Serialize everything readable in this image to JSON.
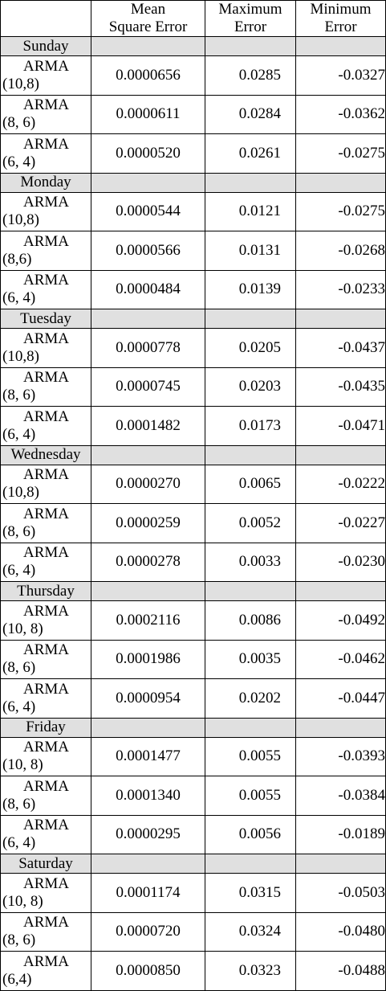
{
  "header": [
    [],
    [
      "Mean",
      "Square Error"
    ],
    [
      "Maximum",
      "Error"
    ],
    [
      "Minimum",
      "Error"
    ]
  ],
  "groups": [
    {
      "day": "Sunday",
      "rows": [
        {
          "model": [
            "ARMA",
            "(10,8)"
          ],
          "mse": "0.0000656",
          "max": "0.0285",
          "min": "-0.0327"
        },
        {
          "model": [
            "ARMA",
            "(8, 6)"
          ],
          "mse": "0.0000611",
          "max": "0.0284",
          "min": "-0.0362"
        },
        {
          "model": [
            "ARMA",
            "(6, 4)"
          ],
          "mse": "0.0000520",
          "max": "0.0261",
          "min": "-0.0275"
        }
      ]
    },
    {
      "day": "Monday",
      "rows": [
        {
          "model": [
            "ARMA",
            "(10,8)"
          ],
          "mse": "0.0000544",
          "max": "0.0121",
          "min": "-0.0275"
        },
        {
          "model": [
            "ARMA",
            "(8,6)"
          ],
          "mse": "0.0000566",
          "max": "0.0131",
          "min": "-0.0268"
        },
        {
          "model": [
            "ARMA",
            "(6, 4)"
          ],
          "mse": "0.0000484",
          "max": "0.0139",
          "min": "-0.0233"
        }
      ]
    },
    {
      "day": "Tuesday",
      "rows": [
        {
          "model": [
            "ARMA",
            "(10,8)"
          ],
          "mse": "0.0000778",
          "max": "0.0205",
          "min": "-0.0437"
        },
        {
          "model": [
            "ARMA",
            "(8, 6)"
          ],
          "mse": "0.0000745",
          "max": "0.0203",
          "min": "-0.0435"
        },
        {
          "model": [
            "ARMA",
            "(6, 4)"
          ],
          "mse": "0.0001482",
          "max": "0.0173",
          "min": "-0.0471"
        }
      ]
    },
    {
      "day": "Wednesday",
      "rows": [
        {
          "model": [
            "ARMA",
            "(10,8)"
          ],
          "mse": "0.0000270",
          "max": "0.0065",
          "min": "-0.0222"
        },
        {
          "model": [
            "ARMA",
            "(8, 6)"
          ],
          "mse": "0.0000259",
          "max": "0.0052",
          "min": "-0.0227"
        },
        {
          "model": [
            "ARMA",
            "(6, 4)"
          ],
          "mse": "0.0000278",
          "max": "0.0033",
          "min": "-0.0230"
        }
      ]
    },
    {
      "day": "Thursday",
      "rows": [
        {
          "model": [
            "ARMA",
            "(10, 8)"
          ],
          "mse": "0.0002116",
          "max": "0.0086",
          "min": "-0.0492"
        },
        {
          "model": [
            "ARMA",
            "(8, 6)"
          ],
          "mse": "0.0001986",
          "max": "0.0035",
          "min": "-0.0462"
        },
        {
          "model": [
            "ARMA",
            "(6, 4)"
          ],
          "mse": "0.0000954",
          "max": "0.0202",
          "min": "-0.0447"
        }
      ]
    },
    {
      "day": "Friday",
      "rows": [
        {
          "model": [
            "ARMA",
            "(10, 8)"
          ],
          "mse": "0.0001477",
          "max": "0.0055",
          "min": "-0.0393"
        },
        {
          "model": [
            "ARMA",
            "(8, 6)"
          ],
          "mse": "0.0001340",
          "max": "0.0055",
          "min": "-0.0384"
        },
        {
          "model": [
            "ARMA",
            "(6, 4)"
          ],
          "mse": "0.0000295",
          "max": "0.0056",
          "min": "-0.0189"
        }
      ]
    },
    {
      "day": "Saturday",
      "rows": [
        {
          "model": [
            "ARMA",
            "(10, 8)"
          ],
          "mse": "0.0001174",
          "max": "0.0315",
          "min": "-0.0503"
        },
        {
          "model": [
            "ARMA",
            "(8, 6)"
          ],
          "mse": "0.0000720",
          "max": "0.0324",
          "min": "-0.0480"
        },
        {
          "model": [
            "ARMA",
            "(6,4)"
          ],
          "mse": "0.0000850",
          "max": "0.0323",
          "min": "-0.0488"
        }
      ]
    }
  ]
}
